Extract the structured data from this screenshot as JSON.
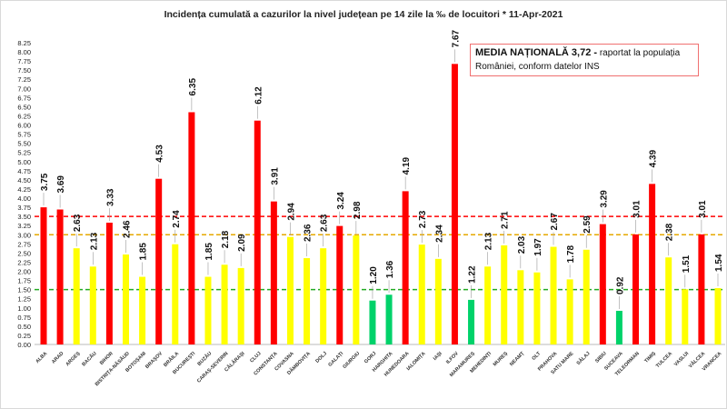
{
  "chart_data": {
    "type": "bar",
    "title": "Incidența cumulată a cazurilor la nivel județean pe 14 zile la ‰ de locuitori *   11-Apr-2021",
    "xlabel": "",
    "ylabel": "",
    "ylim": [
      0,
      8.25
    ],
    "ytick_step": 0.25,
    "grid": false,
    "categories": [
      "ALBA",
      "ARAD",
      "ARGEȘ",
      "BACĂU",
      "BIHOR",
      "BISTRIȚA-NĂSĂUD",
      "BOTOȘANI",
      "BRAȘOV",
      "BRĂILA",
      "BUCUREȘTI",
      "BUZĂU",
      "CARAȘ-SEVERIN",
      "CĂLĂRAȘI",
      "CLUJ",
      "CONSTANȚA",
      "COVASNA",
      "DÂMBOVIȚA",
      "DOLJ",
      "GALAȚI",
      "GIURGIU",
      "GORJ",
      "HARGHITA",
      "HUNEDOARA",
      "IALOMIȚA",
      "IAȘI",
      "ILFOV",
      "MARAMUREȘ",
      "MEHEDINȚI",
      "MUREȘ",
      "NEAMȚ",
      "OLT",
      "PRAHOVA",
      "SATU MARE",
      "SĂLAJ",
      "SIBIU",
      "SUCEAVA",
      "TELEORMAN",
      "TIMIȘ",
      "TULCEA",
      "VASLUI",
      "VÂLCEA",
      "VRANCEA"
    ],
    "values": [
      3.75,
      3.69,
      2.63,
      2.13,
      3.33,
      2.46,
      1.85,
      4.53,
      2.74,
      6.35,
      1.85,
      2.18,
      2.09,
      6.12,
      3.91,
      2.94,
      2.36,
      2.63,
      3.24,
      2.98,
      1.2,
      1.36,
      4.19,
      2.73,
      2.34,
      7.67,
      1.22,
      2.13,
      2.71,
      2.03,
      1.97,
      2.67,
      1.78,
      2.59,
      3.29,
      0.92,
      3.01,
      4.39,
      2.38,
      1.51,
      3.01,
      1.54
    ],
    "bar_colors": {
      "high": "#ff0000",
      "medium": "#ffff00",
      "low": "#00d26a"
    },
    "reference_lines": [
      {
        "value": 3.5,
        "color": "#ff0000",
        "style": "dashed"
      },
      {
        "value": 3.0,
        "color": "#e6a800",
        "style": "dashed"
      },
      {
        "value": 1.5,
        "color": "#22aa22",
        "style": "dashed"
      }
    ],
    "annotation": {
      "bold": "MEDIA NAȚIONALĂ  3,72 -",
      "text": " raportat la populația României, conform datelor INS"
    }
  }
}
